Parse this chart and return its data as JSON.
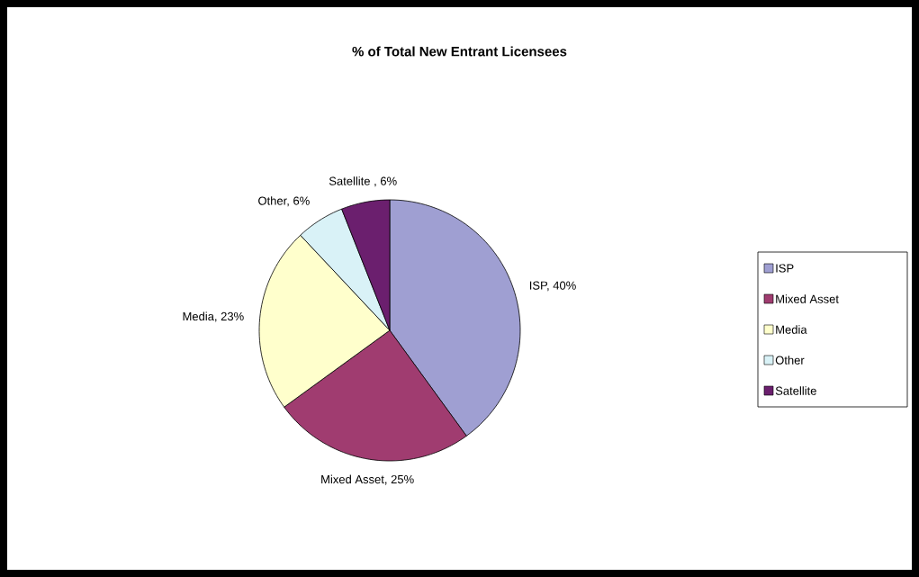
{
  "chart_data": {
    "type": "pie",
    "title": "% of Total New Entrant Licensees",
    "categories": [
      "ISP",
      "Mixed Asset",
      "Media",
      "Other",
      "Satellite"
    ],
    "values": [
      40,
      25,
      23,
      6,
      6
    ],
    "colors": [
      "#9f9fd2",
      "#a03c70",
      "#ffffcc",
      "#d9f2f7",
      "#6b1f6e"
    ],
    "value_labels": [
      "ISP, 40%",
      "Mixed Asset, 25%",
      "Media, 23%",
      "Other, 6%",
      "Satellite , 6%"
    ],
    "legend": "right"
  }
}
